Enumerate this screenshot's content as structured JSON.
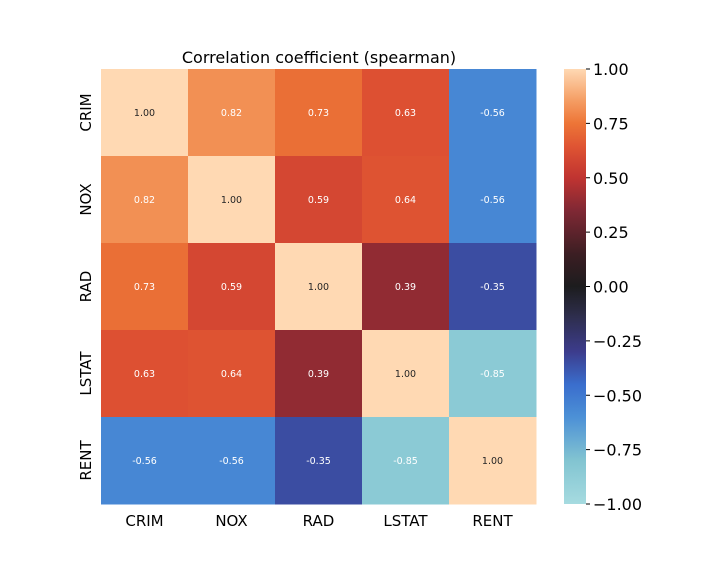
{
  "chart_data": {
    "type": "heatmap",
    "title": "Correlation coefficient (spearman)",
    "rows": [
      "CRIM",
      "NOX",
      "RAD",
      "LSTAT",
      "RENT"
    ],
    "columns": [
      "CRIM",
      "NOX",
      "RAD",
      "LSTAT",
      "RENT"
    ],
    "values": [
      [
        1.0,
        0.82,
        0.73,
        0.63,
        -0.56
      ],
      [
        0.82,
        1.0,
        0.59,
        0.64,
        -0.56
      ],
      [
        0.73,
        0.59,
        1.0,
        0.39,
        -0.35
      ],
      [
        0.63,
        0.64,
        0.39,
        1.0,
        -0.85
      ],
      [
        -0.56,
        -0.56,
        -0.35,
        -0.85,
        1.0
      ]
    ],
    "cell_labels": [
      [
        "1.00",
        "0.82",
        "0.73",
        "0.63",
        "-0.56"
      ],
      [
        "0.82",
        "1.00",
        "0.59",
        "0.64",
        "-0.56"
      ],
      [
        "0.73",
        "0.59",
        "1.00",
        "0.39",
        "-0.35"
      ],
      [
        "0.63",
        "0.64",
        "0.39",
        "1.00",
        "-0.85"
      ],
      [
        "-0.56",
        "-0.56",
        "-0.35",
        "-0.85",
        "1.00"
      ]
    ],
    "colorbar": {
      "range": [
        -1.0,
        1.0
      ],
      "ticks": [
        1.0,
        0.75,
        0.5,
        0.25,
        0.0,
        -0.25,
        -0.5,
        -0.75,
        -1.0
      ],
      "tick_labels": [
        "1.00",
        "0.75",
        "0.50",
        "0.25",
        "0.00",
        "−0.25",
        "−0.50",
        "−0.75",
        "−1.00"
      ]
    },
    "colormap": "icefire",
    "colors": {
      "min": "#a6dbe0",
      "max": "#ffd9b3",
      "center": "#1c1c1e"
    }
  }
}
